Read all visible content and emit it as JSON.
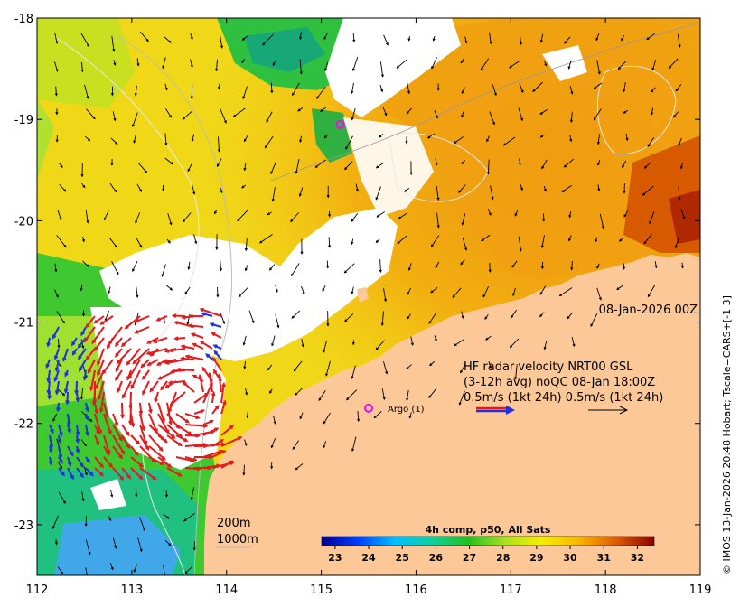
{
  "map": {
    "x_axis": {
      "ticks": [
        "112",
        "113",
        "114",
        "115",
        "116",
        "117",
        "118",
        "119"
      ],
      "range": [
        112,
        119
      ]
    },
    "y_axis": {
      "ticks": [
        "-18",
        "-19",
        "-20",
        "-21",
        "-22",
        "-23"
      ],
      "range": [
        -23.5,
        -18
      ]
    },
    "timestamp": "08-Jan-2026 00Z",
    "legend": {
      "line1": "HF radar velocity  NRT00 GSL",
      "line2": "(3-12h avg) noQC 08-Jan 18:00Z",
      "line3": "0.5m/s (1kt 24h)  0.5m/s (1kt 24h)"
    },
    "argo": {
      "label": "Argo (1)",
      "lon": 115.5,
      "lat": -21.85
    },
    "mooring": {
      "lon": 115.2,
      "lat": -19.05
    },
    "isobaths": {
      "line1": "200m",
      "line2": "1000m"
    },
    "colorbar": {
      "title": "4h comp, p50, All Sats",
      "ticks": [
        "23",
        "24",
        "25",
        "26",
        "27",
        "28",
        "29",
        "30",
        "31",
        "32"
      ],
      "range": [
        22.6,
        32.5
      ]
    },
    "credit": "© IMOS 13-Jan-2026 20:48 Hobart; Tscale=CARS+[-1 3]",
    "colors": {
      "land": "#fcc898",
      "cloud": "#ffffff",
      "radar_red": "#e41a1c",
      "radar_blue": "#1f30e0",
      "argo_marker": "#ff00ff"
    }
  }
}
